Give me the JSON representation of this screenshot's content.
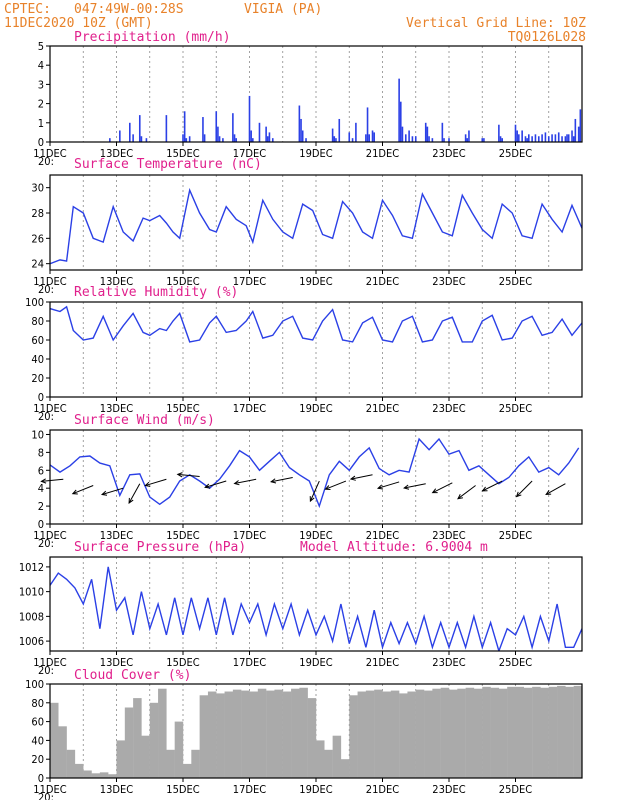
{
  "header": {
    "source_label": "CPTEC:",
    "location": "047:49W-00:28S",
    "station": "VIGIA (PA)",
    "run_datetime": "11DEC2020 10Z (GMT)",
    "grid_note": "Vertical Grid Line: 10Z",
    "code": "TQ0126L028",
    "model_altitude_label": "Model Altitude: 6.9004 m"
  },
  "colors": {
    "header": "#e8822a",
    "title": "#e0208c",
    "curve": "#2b40e6",
    "bars": "#2b40e6",
    "cloud": "#aaaaaa"
  },
  "chart_data": [
    {
      "type": "bar",
      "title": "Precipitation (mm/h)",
      "ylim": [
        0,
        5
      ],
      "yticks": [
        "0",
        "1",
        "2",
        "3",
        "4",
        "5"
      ],
      "xticks": [
        "11DEC",
        "13DEC",
        "15DEC",
        "17DEC",
        "19DEC",
        "21DEC",
        "23DEC",
        "25DEC"
      ],
      "x_start_note": "20:",
      "x": [
        1.8,
        2.1,
        2.4,
        2.5,
        2.7,
        2.75,
        2.9,
        3.5,
        4.0,
        4.05,
        4.1,
        4.2,
        4.6,
        4.65,
        5.0,
        5.05,
        5.1,
        5.2,
        5.5,
        5.55,
        5.6,
        6.0,
        6.05,
        6.1,
        6.3,
        6.5,
        6.55,
        6.6,
        6.7,
        7.5,
        7.55,
        7.6,
        7.7,
        8.5,
        8.55,
        8.6,
        8.7,
        9.0,
        9.1,
        9.2,
        9.5,
        9.55,
        9.6,
        9.7,
        9.75,
        10.5,
        10.55,
        10.6,
        10.7,
        10.8,
        10.9,
        11.0,
        11.3,
        11.35,
        11.4,
        11.5,
        11.8,
        11.85,
        12.0,
        12.5,
        12.55,
        12.6,
        13.0,
        13.05,
        13.5,
        13.55,
        13.6,
        14.0,
        14.05,
        14.1,
        14.2,
        14.3,
        14.35,
        14.4,
        14.5,
        14.6,
        14.7,
        14.8,
        14.9,
        15.0,
        15.1,
        15.2,
        15.3,
        15.4,
        15.5,
        15.55,
        15.6,
        15.7,
        15.75,
        15.8,
        15.9,
        15.95
      ],
      "values": [
        0.2,
        0.6,
        1.0,
        0.4,
        1.4,
        0.3,
        0.2,
        1.4,
        0.4,
        1.6,
        0.2,
        0.3,
        1.3,
        0.4,
        1.6,
        0.8,
        0.3,
        0.2,
        1.5,
        0.4,
        0.2,
        2.4,
        0.6,
        0.2,
        1.0,
        0.8,
        0.3,
        0.5,
        0.2,
        1.9,
        1.2,
        0.6,
        0.2,
        0.7,
        0.3,
        0.2,
        1.2,
        0.5,
        0.2,
        1.0,
        0.4,
        1.8,
        0.4,
        0.6,
        0.5,
        3.3,
        2.1,
        0.8,
        0.4,
        0.6,
        0.3,
        0.3,
        1.0,
        0.8,
        0.3,
        0.2,
        1.0,
        0.2,
        0.2,
        0.4,
        0.2,
        0.6,
        0.2,
        0.2,
        0.9,
        0.3,
        0.2,
        0.9,
        0.6,
        0.4,
        0.6,
        0.3,
        0.2,
        0.4,
        0.3,
        0.4,
        0.3,
        0.4,
        0.5,
        0.3,
        0.4,
        0.4,
        0.5,
        0.3,
        0.3,
        0.4,
        0.4,
        0.6,
        0.3,
        1.2,
        0.8,
        1.7
      ]
    },
    {
      "type": "line",
      "title": "Surface Temperature (nC)",
      "ylim": [
        23.5,
        31
      ],
      "yticks": [
        "24",
        "26",
        "28",
        "30"
      ],
      "xticks": [
        "11DEC",
        "13DEC",
        "15DEC",
        "17DEC",
        "19DEC",
        "21DEC",
        "23DEC",
        "25DEC"
      ],
      "x_start_note": "20:",
      "x": [
        0,
        0.3,
        0.5,
        0.7,
        1.0,
        1.3,
        1.6,
        1.9,
        2.2,
        2.5,
        2.8,
        3.0,
        3.3,
        3.5,
        3.7,
        3.9,
        4.2,
        4.5,
        4.8,
        5.0,
        5.3,
        5.6,
        5.9,
        6.1,
        6.4,
        6.7,
        7.0,
        7.3,
        7.6,
        7.9,
        8.2,
        8.5,
        8.8,
        9.1,
        9.4,
        9.7,
        10.0,
        10.3,
        10.6,
        10.9,
        11.2,
        11.5,
        11.8,
        12.1,
        12.4,
        12.7,
        13.0,
        13.3,
        13.6,
        13.9,
        14.2,
        14.5,
        14.8,
        15.1,
        15.4,
        15.7,
        16.0
      ],
      "values": [
        24.0,
        24.3,
        24.2,
        28.5,
        28.0,
        26.0,
        25.7,
        28.5,
        26.5,
        25.8,
        27.6,
        27.4,
        27.8,
        27.2,
        26.5,
        26.0,
        29.8,
        28.0,
        26.7,
        26.5,
        28.5,
        27.5,
        27.0,
        25.7,
        29.0,
        27.5,
        26.5,
        26.0,
        28.7,
        28.2,
        26.3,
        26.0,
        28.9,
        28.0,
        26.5,
        26.0,
        29.0,
        27.8,
        26.2,
        26.0,
        29.5,
        28.0,
        26.5,
        26.2,
        29.4,
        28.0,
        26.7,
        26.0,
        28.7,
        28.0,
        26.2,
        26.0,
        28.7,
        27.5,
        26.5,
        28.6,
        26.8
      ]
    },
    {
      "type": "line",
      "title": "Relative Humidity (%)",
      "ylim": [
        0,
        100
      ],
      "yticks": [
        "0",
        "20",
        "40",
        "60",
        "80",
        "100"
      ],
      "xticks": [
        "11DEC",
        "13DEC",
        "15DEC",
        "17DEC",
        "19DEC",
        "21DEC",
        "23DEC",
        "25DEC"
      ],
      "x_start_note": "20:",
      "x": [
        0,
        0.3,
        0.5,
        0.7,
        1.0,
        1.3,
        1.6,
        1.9,
        2.2,
        2.5,
        2.8,
        3.0,
        3.3,
        3.5,
        3.7,
        3.9,
        4.2,
        4.5,
        4.8,
        5.0,
        5.3,
        5.6,
        5.9,
        6.1,
        6.4,
        6.7,
        7.0,
        7.3,
        7.6,
        7.9,
        8.2,
        8.5,
        8.8,
        9.1,
        9.4,
        9.7,
        10.0,
        10.3,
        10.6,
        10.9,
        11.2,
        11.5,
        11.8,
        12.1,
        12.4,
        12.7,
        13.0,
        13.3,
        13.6,
        13.9,
        14.2,
        14.5,
        14.8,
        15.1,
        15.4,
        15.7,
        16.0
      ],
      "values": [
        93,
        90,
        95,
        70,
        60,
        62,
        85,
        60,
        75,
        88,
        68,
        65,
        72,
        70,
        80,
        88,
        58,
        60,
        78,
        85,
        68,
        70,
        80,
        90,
        62,
        65,
        80,
        85,
        62,
        60,
        80,
        92,
        60,
        58,
        78,
        84,
        60,
        58,
        80,
        85,
        58,
        60,
        80,
        84,
        58,
        58,
        80,
        86,
        60,
        62,
        80,
        85,
        65,
        68,
        82,
        65,
        78
      ]
    },
    {
      "type": "line",
      "title": "Surface Wind (m/s)",
      "ylim": [
        0,
        10.5
      ],
      "yticks": [
        "0",
        "2",
        "4",
        "6",
        "8",
        "10"
      ],
      "xticks": [
        "11DEC",
        "13DEC",
        "15DEC",
        "17DEC",
        "19DEC",
        "21DEC",
        "23DEC",
        "25DEC"
      ],
      "x_start_note": "20:",
      "x": [
        0,
        0.3,
        0.6,
        0.9,
        1.2,
        1.5,
        1.8,
        2.1,
        2.4,
        2.7,
        3.0,
        3.3,
        3.6,
        3.9,
        4.2,
        4.5,
        4.8,
        5.1,
        5.4,
        5.7,
        6.0,
        6.3,
        6.6,
        6.9,
        7.2,
        7.5,
        7.8,
        8.1,
        8.4,
        8.7,
        9.0,
        9.3,
        9.6,
        9.9,
        10.2,
        10.5,
        10.8,
        11.1,
        11.4,
        11.7,
        12.0,
        12.3,
        12.6,
        12.9,
        13.2,
        13.5,
        13.8,
        14.1,
        14.4,
        14.7,
        15.0,
        15.3,
        15.6,
        15.9
      ],
      "values": [
        6.6,
        5.8,
        6.5,
        7.5,
        7.6,
        6.8,
        6.5,
        3.2,
        5.5,
        5.6,
        3.0,
        2.2,
        3.0,
        4.8,
        5.5,
        4.8,
        4.0,
        5.0,
        6.5,
        8.2,
        7.5,
        6.0,
        7.0,
        8.0,
        6.3,
        5.5,
        4.8,
        2.0,
        5.5,
        7.0,
        6.0,
        7.5,
        8.5,
        6.2,
        5.5,
        6.0,
        5.8,
        9.5,
        8.3,
        9.5,
        7.8,
        8.2,
        6.0,
        6.5,
        5.5,
        4.5,
        5.2,
        6.5,
        7.5,
        5.8,
        6.3,
        5.5,
        6.8,
        8.5
      ],
      "arrows_x": [
        0.4,
        1.3,
        2.2,
        2.7,
        3.5,
        4.5,
        5.3,
        6.2,
        7.3,
        8.1,
        8.9,
        9.7,
        10.5,
        11.3,
        12.1,
        12.8,
        13.6,
        14.5,
        15.5
      ],
      "arrows_y": [
        5.0,
        4.3,
        4.0,
        4.5,
        5.0,
        5.3,
        4.8,
        5.0,
        5.2,
        4.8,
        4.8,
        5.5,
        4.7,
        4.5,
        4.6,
        4.3,
        4.8,
        4.8,
        4.5
      ],
      "arrows_u": [
        -1,
        -1,
        -1,
        -0.5,
        -1,
        -1,
        -1,
        -1,
        -1,
        -0.4,
        -1,
        -1,
        -1,
        -1,
        -1,
        -0.8,
        -1,
        -0.7,
        -0.9
      ],
      "arrows_v": [
        -0.1,
        -0.4,
        -0.3,
        -0.9,
        -0.3,
        0.1,
        -0.3,
        -0.2,
        -0.2,
        -0.9,
        -0.4,
        -0.2,
        -0.3,
        -0.2,
        -0.5,
        -0.6,
        -0.5,
        -0.7,
        -0.5
      ]
    },
    {
      "type": "line",
      "title": "Surface Pressure (hPa)",
      "ylim": [
        1005.2,
        1012.8
      ],
      "yticks": [
        "1006",
        "1008",
        "1010",
        "1012"
      ],
      "xticks": [
        "11DEC",
        "13DEC",
        "15DEC",
        "17DEC",
        "19DEC",
        "21DEC",
        "23DEC",
        "25DEC"
      ],
      "x_start_note": "20:",
      "x": [
        0,
        0.25,
        0.5,
        0.75,
        1.0,
        1.25,
        1.5,
        1.75,
        2.0,
        2.25,
        2.5,
        2.75,
        3.0,
        3.25,
        3.5,
        3.75,
        4.0,
        4.25,
        4.5,
        4.75,
        5.0,
        5.25,
        5.5,
        5.75,
        6.0,
        6.25,
        6.5,
        6.75,
        7.0,
        7.25,
        7.5,
        7.75,
        8.0,
        8.25,
        8.5,
        8.75,
        9.0,
        9.25,
        9.5,
        9.75,
        10.0,
        10.25,
        10.5,
        10.75,
        11.0,
        11.25,
        11.5,
        11.75,
        12.0,
        12.25,
        12.5,
        12.75,
        13.0,
        13.25,
        13.5,
        13.75,
        14.0,
        14.25,
        14.5,
        14.75,
        15.0,
        15.25,
        15.5,
        15.75,
        16.0
      ],
      "values": [
        1010.5,
        1011.5,
        1011.0,
        1010.3,
        1009.0,
        1011.0,
        1007.0,
        1012.0,
        1008.5,
        1009.5,
        1006.5,
        1010.0,
        1007.0,
        1009.0,
        1006.5,
        1009.5,
        1006.5,
        1009.5,
        1007.0,
        1009.5,
        1006.5,
        1009.5,
        1006.5,
        1009.0,
        1007.5,
        1009.0,
        1006.5,
        1009.0,
        1007.0,
        1009.0,
        1006.5,
        1008.5,
        1006.5,
        1008.0,
        1006.0,
        1009.0,
        1005.8,
        1008.0,
        1005.5,
        1008.5,
        1005.5,
        1007.5,
        1005.8,
        1007.5,
        1005.8,
        1008.0,
        1005.5,
        1007.5,
        1005.5,
        1007.5,
        1005.5,
        1008.0,
        1005.5,
        1007.5,
        1005.2,
        1007.0,
        1006.5,
        1008.0,
        1005.5,
        1008.0,
        1006.0,
        1009.0,
        1005.5,
        1005.5,
        1007.0
      ]
    },
    {
      "type": "bar",
      "title": "Cloud Cover (%)",
      "ylim": [
        0,
        100
      ],
      "yticks": [
        "0",
        "20",
        "40",
        "60",
        "80",
        "100"
      ],
      "xticks": [
        "11DEC",
        "13DEC",
        "15DEC",
        "17DEC",
        "19DEC",
        "21DEC",
        "23DEC",
        "25DEC"
      ],
      "x_start_note": "20:",
      "x": [
        0,
        0.25,
        0.5,
        0.75,
        1.0,
        1.25,
        1.5,
        1.75,
        2.0,
        2.25,
        2.5,
        2.75,
        3.0,
        3.25,
        3.5,
        3.75,
        4.0,
        4.25,
        4.5,
        4.75,
        5.0,
        5.25,
        5.5,
        5.75,
        6.0,
        6.25,
        6.5,
        6.75,
        7.0,
        7.25,
        7.5,
        7.75,
        8.0,
        8.25,
        8.5,
        8.75,
        9.0,
        9.25,
        9.5,
        9.75,
        10.0,
        10.25,
        10.5,
        10.75,
        11.0,
        11.25,
        11.5,
        11.75,
        12.0,
        12.25,
        12.5,
        12.75,
        13.0,
        13.25,
        13.5,
        13.75,
        14.0,
        14.25,
        14.5,
        14.75,
        15.0,
        15.25,
        15.5,
        15.75
      ],
      "values": [
        80,
        55,
        30,
        15,
        8,
        5,
        6,
        4,
        40,
        75,
        85,
        45,
        80,
        95,
        30,
        60,
        15,
        30,
        88,
        92,
        90,
        92,
        94,
        93,
        92,
        95,
        93,
        94,
        92,
        95,
        96,
        85,
        40,
        30,
        45,
        20,
        88,
        92,
        93,
        94,
        92,
        93,
        90,
        92,
        94,
        93,
        95,
        96,
        94,
        95,
        96,
        95,
        97,
        96,
        95,
        97,
        97,
        96,
        97,
        96,
        97,
        98,
        97,
        98
      ]
    }
  ]
}
